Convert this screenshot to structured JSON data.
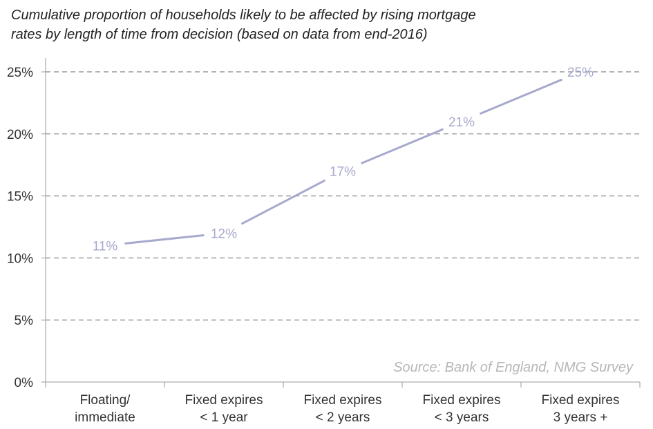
{
  "title": {
    "line1": "Cumulative proportion of households likely to be affected by rising mortgage",
    "line2": "rates by length of time from decision (based on data from end-2016)"
  },
  "source": "Source: Bank of England, NMG Survey",
  "colors": {
    "line": "#a6a9cd",
    "grid": "#888888",
    "axis": "#999999",
    "text": "#333333"
  },
  "chart_data": {
    "type": "line",
    "title": "Cumulative proportion of households likely to be affected by rising mortgage rates by length of time from decision (based on data from end-2016)",
    "categories": [
      [
        "Floating/",
        "immediate"
      ],
      [
        "Fixed expires",
        "< 1 year"
      ],
      [
        "Fixed expires",
        "< 2 years"
      ],
      [
        "Fixed expires",
        "< 3 years"
      ],
      [
        "Fixed expires",
        "3 years +"
      ]
    ],
    "values": [
      11,
      12,
      17,
      21,
      25
    ],
    "data_labels": [
      "11%",
      "12%",
      "17%",
      "21%",
      "25%"
    ],
    "y_ticks": [
      0,
      5,
      10,
      15,
      20,
      25
    ],
    "y_tick_labels": [
      "0%",
      "5%",
      "10%",
      "15%",
      "20%",
      "25%"
    ],
    "ylim": [
      0,
      25
    ],
    "grid": "horizontal dashed",
    "legend": "none"
  }
}
